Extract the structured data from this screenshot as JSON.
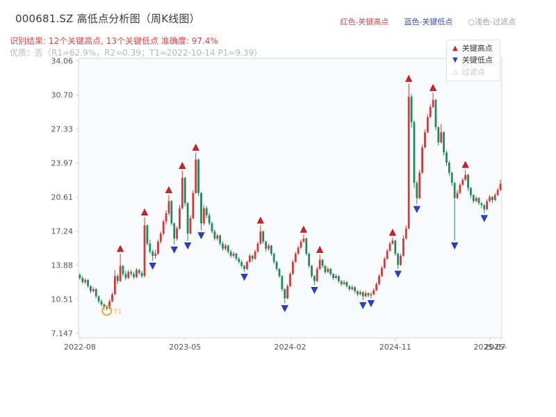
{
  "header": {
    "title": "000681.SZ 高低点分析图（周K线图）",
    "legend_high": "红色-关键高点",
    "legend_low": "蓝色-关键低点",
    "legend_filtered": "○浅色-过滤点",
    "result_line": "识别结果: 12个关键高点, 13个关键低点  准确度: 97.4%",
    "quality_line": "优质：否（R1=62.9%，R2=0.39；T1=2022-10-14 P1=9.39）"
  },
  "chart_legend": {
    "high": "关键高点",
    "low": "关键低点",
    "filtered": "过滤点"
  },
  "colors": {
    "up": "#cf3a3a",
    "down": "#1f8b5a",
    "key_high": "#d42020",
    "key_low": "#2742cc",
    "filtered": "#f0a030",
    "axis_text": "#555555",
    "plot_bg": "#f9fafb",
    "plot_border": "#d5d5d5"
  },
  "chart_data": {
    "type": "candlestick",
    "title": "000681.SZ 高低点分析图（周K线图）",
    "xlabel": "",
    "ylabel": "",
    "candle_format": [
      "open",
      "high",
      "low",
      "close"
    ],
    "up_means": "close >= open (red)",
    "ylim": [
      6.7,
      34.3
    ],
    "y_ticks": [
      {
        "v": 34.06,
        "label": "34.06"
      },
      {
        "v": 30.7,
        "label": "30.70"
      },
      {
        "v": 27.33,
        "label": "27.33"
      },
      {
        "v": 23.97,
        "label": "23.97"
      },
      {
        "v": 20.61,
        "label": "20.61"
      },
      {
        "v": 17.24,
        "label": "17.24"
      },
      {
        "v": 13.88,
        "label": "13.88"
      },
      {
        "v": 10.51,
        "label": "10.51"
      },
      {
        "v": 7.147,
        "label": "7.147"
      }
    ],
    "x_ticks": [
      {
        "i": 0,
        "label": "2022-08"
      },
      {
        "i": 39,
        "label": "2023-05"
      },
      {
        "i": 78,
        "label": "2024-02"
      },
      {
        "i": 117,
        "label": "2024-11"
      },
      {
        "i": 152,
        "label": "2025-07"
      },
      {
        "i": 156,
        "label": "2025-08"
      }
    ],
    "candles": [
      [
        12.9,
        13.1,
        12.4,
        12.6
      ],
      [
        12.6,
        12.8,
        12.0,
        12.2
      ],
      [
        12.2,
        12.6,
        12.0,
        12.4
      ],
      [
        12.4,
        12.5,
        11.6,
        11.8
      ],
      [
        11.8,
        11.9,
        11.1,
        11.3
      ],
      [
        11.3,
        11.7,
        11.2,
        11.5
      ],
      [
        11.5,
        11.6,
        10.6,
        10.8
      ],
      [
        10.8,
        10.9,
        10.1,
        10.3
      ],
      [
        10.3,
        10.5,
        9.8,
        10.0
      ],
      [
        10.0,
        10.1,
        9.5,
        9.7
      ],
      [
        9.7,
        9.9,
        9.39,
        9.6
      ],
      [
        9.6,
        10.5,
        9.5,
        10.3
      ],
      [
        10.3,
        11.2,
        10.2,
        11.0
      ],
      [
        11.0,
        13.4,
        10.9,
        12.8
      ],
      [
        12.8,
        13.0,
        12.0,
        12.3
      ],
      [
        12.3,
        15.0,
        12.2,
        13.8
      ],
      [
        13.8,
        13.9,
        12.8,
        13.0
      ],
      [
        13.0,
        13.3,
        12.4,
        12.6
      ],
      [
        12.6,
        13.4,
        12.5,
        13.2
      ],
      [
        13.2,
        13.4,
        12.8,
        13.0
      ],
      [
        13.0,
        13.2,
        12.5,
        12.7
      ],
      [
        12.7,
        13.6,
        12.6,
        13.4
      ],
      [
        13.4,
        13.5,
        12.9,
        13.1
      ],
      [
        13.1,
        13.3,
        12.6,
        12.8
      ],
      [
        12.8,
        18.6,
        12.7,
        17.8
      ],
      [
        17.8,
        17.9,
        15.8,
        16.0
      ],
      [
        16.0,
        16.4,
        15.0,
        15.2
      ],
      [
        15.2,
        15.4,
        14.3,
        14.8
      ],
      [
        14.8,
        15.4,
        14.5,
        15.0
      ],
      [
        15.0,
        16.4,
        14.9,
        16.2
      ],
      [
        16.2,
        17.2,
        16.0,
        17.0
      ],
      [
        17.0,
        18.4,
        16.8,
        18.2
      ],
      [
        18.2,
        19.3,
        17.9,
        19.0
      ],
      [
        19.0,
        20.8,
        18.8,
        20.2
      ],
      [
        20.2,
        20.3,
        17.8,
        18.0
      ],
      [
        18.0,
        18.1,
        15.9,
        16.5
      ],
      [
        16.5,
        17.7,
        16.3,
        17.5
      ],
      [
        17.5,
        19.8,
        17.4,
        19.5
      ],
      [
        19.5,
        23.2,
        19.4,
        22.5
      ],
      [
        22.5,
        22.6,
        19.7,
        20.0
      ],
      [
        20.0,
        20.1,
        16.3,
        17.0
      ],
      [
        17.0,
        18.8,
        16.9,
        18.5
      ],
      [
        18.5,
        21.3,
        18.4,
        21.0
      ],
      [
        21.0,
        25.0,
        20.9,
        24.3
      ],
      [
        24.3,
        24.4,
        20.7,
        21.0
      ],
      [
        21.0,
        21.1,
        17.3,
        18.0
      ],
      [
        18.0,
        19.8,
        17.8,
        19.5
      ],
      [
        19.5,
        19.7,
        18.5,
        18.8
      ],
      [
        18.8,
        19.0,
        17.8,
        18.0
      ],
      [
        18.0,
        18.2,
        17.0,
        17.2
      ],
      [
        17.2,
        17.4,
        16.3,
        16.5
      ],
      [
        16.5,
        17.0,
        16.3,
        16.8
      ],
      [
        16.8,
        16.9,
        15.8,
        16.0
      ],
      [
        16.0,
        16.2,
        15.3,
        15.5
      ],
      [
        15.5,
        16.0,
        15.3,
        15.8
      ],
      [
        15.8,
        15.9,
        15.0,
        15.2
      ],
      [
        15.2,
        15.4,
        14.6,
        14.8
      ],
      [
        14.8,
        15.2,
        14.6,
        15.0
      ],
      [
        15.0,
        15.1,
        14.3,
        14.5
      ],
      [
        14.5,
        14.7,
        14.0,
        14.2
      ],
      [
        14.2,
        14.4,
        13.6,
        13.8
      ],
      [
        13.8,
        13.9,
        13.2,
        13.5
      ],
      [
        13.5,
        14.3,
        13.4,
        14.2
      ],
      [
        14.2,
        15.0,
        14.1,
        14.8
      ],
      [
        14.8,
        14.9,
        14.2,
        14.5
      ],
      [
        14.5,
        15.4,
        14.4,
        15.2
      ],
      [
        15.2,
        16.2,
        15.1,
        16.0
      ],
      [
        16.0,
        17.8,
        15.9,
        17.2
      ],
      [
        17.2,
        17.3,
        16.0,
        16.2
      ],
      [
        16.2,
        16.3,
        15.2,
        15.5
      ],
      [
        15.5,
        16.0,
        15.3,
        15.8
      ],
      [
        15.8,
        15.9,
        14.8,
        15.0
      ],
      [
        15.0,
        15.1,
        14.0,
        14.2
      ],
      [
        14.2,
        14.3,
        13.3,
        13.5
      ],
      [
        13.5,
        13.6,
        12.6,
        12.8
      ],
      [
        12.8,
        12.9,
        11.3,
        11.5
      ],
      [
        11.5,
        11.6,
        10.1,
        10.6
      ],
      [
        10.6,
        12.0,
        10.5,
        11.8
      ],
      [
        11.8,
        13.2,
        11.7,
        13.0
      ],
      [
        13.0,
        14.4,
        12.9,
        14.2
      ],
      [
        14.2,
        15.2,
        14.1,
        15.0
      ],
      [
        15.0,
        15.8,
        14.9,
        15.6
      ],
      [
        15.6,
        16.4,
        15.5,
        16.2
      ],
      [
        16.2,
        16.9,
        16.1,
        16.5
      ],
      [
        16.5,
        16.6,
        14.8,
        15.0
      ],
      [
        15.0,
        15.1,
        13.6,
        13.8
      ],
      [
        13.8,
        13.9,
        12.6,
        12.8
      ],
      [
        12.8,
        12.9,
        11.9,
        12.3
      ],
      [
        12.3,
        13.7,
        12.2,
        13.5
      ],
      [
        13.5,
        14.9,
        13.4,
        14.4
      ],
      [
        14.4,
        14.5,
        13.6,
        13.8
      ],
      [
        13.8,
        13.9,
        13.0,
        13.2
      ],
      [
        13.2,
        13.7,
        13.1,
        13.5
      ],
      [
        13.5,
        13.6,
        12.8,
        13.0
      ],
      [
        13.0,
        13.1,
        12.4,
        12.6
      ],
      [
        12.6,
        13.0,
        12.5,
        12.8
      ],
      [
        12.8,
        12.9,
        12.1,
        12.3
      ],
      [
        12.3,
        12.4,
        11.8,
        12.0
      ],
      [
        12.0,
        12.4,
        11.9,
        12.2
      ],
      [
        12.2,
        12.3,
        11.6,
        11.8
      ],
      [
        11.8,
        11.9,
        11.3,
        11.5
      ],
      [
        11.5,
        11.9,
        11.4,
        11.7
      ],
      [
        11.7,
        11.8,
        11.1,
        11.3
      ],
      [
        11.3,
        11.4,
        10.8,
        11.0
      ],
      [
        11.0,
        11.4,
        10.9,
        11.2
      ],
      [
        11.2,
        11.3,
        10.4,
        10.8
      ],
      [
        10.8,
        11.3,
        10.7,
        11.1
      ],
      [
        11.1,
        11.2,
        10.7,
        10.9
      ],
      [
        10.9,
        11.2,
        10.6,
        11.0
      ],
      [
        11.0,
        11.6,
        10.9,
        11.4
      ],
      [
        11.4,
        12.2,
        11.3,
        12.0
      ],
      [
        12.0,
        13.0,
        11.9,
        12.8
      ],
      [
        12.8,
        13.8,
        12.7,
        13.6
      ],
      [
        13.6,
        14.7,
        13.5,
        14.5
      ],
      [
        14.5,
        15.5,
        14.4,
        15.3
      ],
      [
        15.3,
        16.2,
        15.2,
        16.0
      ],
      [
        16.0,
        16.6,
        15.9,
        16.3
      ],
      [
        16.3,
        16.4,
        14.8,
        15.0
      ],
      [
        15.0,
        15.1,
        13.5,
        13.9
      ],
      [
        13.9,
        15.0,
        13.8,
        14.8
      ],
      [
        14.8,
        16.8,
        14.7,
        16.5
      ],
      [
        16.5,
        17.8,
        16.4,
        17.5
      ],
      [
        17.5,
        31.8,
        17.4,
        30.5
      ],
      [
        30.5,
        30.8,
        27.5,
        28.0
      ],
      [
        28.0,
        28.2,
        21.5,
        22.0
      ],
      [
        22.0,
        22.2,
        19.9,
        20.5
      ],
      [
        20.5,
        23.3,
        20.4,
        23.0
      ],
      [
        23.0,
        25.8,
        22.9,
        25.5
      ],
      [
        25.5,
        27.3,
        25.4,
        27.0
      ],
      [
        27.0,
        28.8,
        26.9,
        28.5
      ],
      [
        28.5,
        29.8,
        28.4,
        29.5
      ],
      [
        29.5,
        30.9,
        29.4,
        30.2
      ],
      [
        30.2,
        30.3,
        27.2,
        27.5
      ],
      [
        27.5,
        27.6,
        25.7,
        26.0
      ],
      [
        26.0,
        27.8,
        25.9,
        27.0
      ],
      [
        27.0,
        27.1,
        24.7,
        25.0
      ],
      [
        25.0,
        25.2,
        23.7,
        24.0
      ],
      [
        24.0,
        24.2,
        22.7,
        23.0
      ],
      [
        23.0,
        23.1,
        21.7,
        22.0
      ],
      [
        22.0,
        22.1,
        16.3,
        20.5
      ],
      [
        20.5,
        21.3,
        20.4,
        21.0
      ],
      [
        21.0,
        22.0,
        20.9,
        21.8
      ],
      [
        21.8,
        22.5,
        21.7,
        22.3
      ],
      [
        22.3,
        23.3,
        22.2,
        22.8
      ],
      [
        22.8,
        22.9,
        21.2,
        21.5
      ],
      [
        21.5,
        21.6,
        20.5,
        20.8
      ],
      [
        20.8,
        20.9,
        20.0,
        20.2
      ],
      [
        20.2,
        20.7,
        20.1,
        20.5
      ],
      [
        20.5,
        20.6,
        19.8,
        20.0
      ],
      [
        20.0,
        20.1,
        19.5,
        19.8
      ],
      [
        19.8,
        19.9,
        19.0,
        19.4
      ],
      [
        19.4,
        20.4,
        19.3,
        20.2
      ],
      [
        20.2,
        20.8,
        20.1,
        20.6
      ],
      [
        20.6,
        20.7,
        20.0,
        20.3
      ],
      [
        20.3,
        21.0,
        20.2,
        20.8
      ],
      [
        20.8,
        21.5,
        20.7,
        21.3
      ],
      [
        21.3,
        22.3,
        21.2,
        21.9
      ]
    ],
    "key_highs": [
      {
        "i": 15,
        "price": 15.0
      },
      {
        "i": 24,
        "price": 18.6
      },
      {
        "i": 33,
        "price": 20.8
      },
      {
        "i": 38,
        "price": 23.2
      },
      {
        "i": 43,
        "price": 25.0
      },
      {
        "i": 67,
        "price": 17.8
      },
      {
        "i": 83,
        "price": 16.9
      },
      {
        "i": 89,
        "price": 14.9
      },
      {
        "i": 116,
        "price": 16.6
      },
      {
        "i": 122,
        "price": 31.8
      },
      {
        "i": 131,
        "price": 30.9
      },
      {
        "i": 143,
        "price": 23.3
      }
    ],
    "key_lows": [
      {
        "i": 27,
        "price": 14.3
      },
      {
        "i": 35,
        "price": 15.9
      },
      {
        "i": 40,
        "price": 16.3
      },
      {
        "i": 45,
        "price": 17.3
      },
      {
        "i": 61,
        "price": 13.2
      },
      {
        "i": 76,
        "price": 10.1
      },
      {
        "i": 87,
        "price": 11.9
      },
      {
        "i": 105,
        "price": 10.4
      },
      {
        "i": 108,
        "price": 10.6
      },
      {
        "i": 118,
        "price": 13.5
      },
      {
        "i": 125,
        "price": 19.9
      },
      {
        "i": 139,
        "price": 16.3
      },
      {
        "i": 150,
        "price": 19.0
      }
    ],
    "filtered_points": [
      {
        "i": 10,
        "price": 9.39,
        "label": "T1"
      }
    ]
  }
}
